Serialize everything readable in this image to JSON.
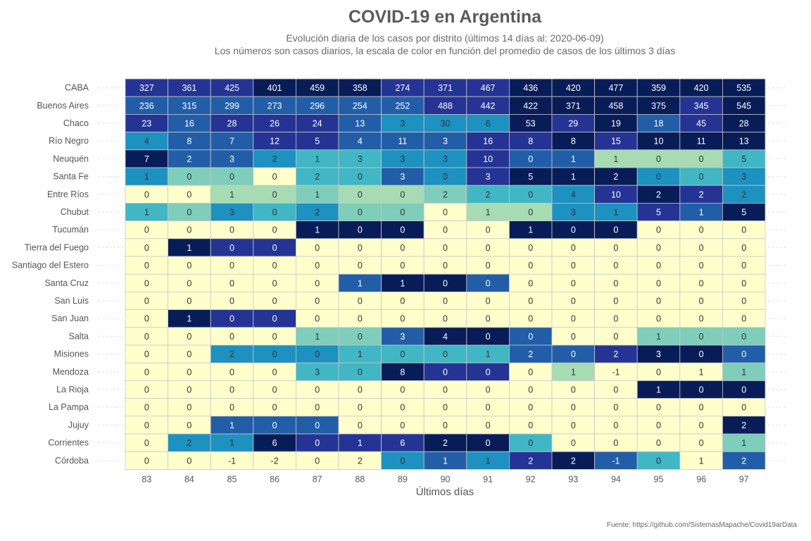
{
  "chart_data": {
    "type": "heatmap",
    "title": "COVID-19 en Argentina",
    "subtitle_line1": "Evolución diaria de los casos por distrito (últimos 14 días al: 2020-06-09)",
    "subtitle_line2": "Los números son casos diarios, la escala de color en función del promedio de casos de los últimos 3 días",
    "xlabel": "Últimos días",
    "caption": "Fuente: https://github.com/SistemasMapache/Covid19arData",
    "x": [
      "83",
      "84",
      "85",
      "86",
      "87",
      "88",
      "89",
      "90",
      "91",
      "92",
      "93",
      "94",
      "95",
      "96",
      "97"
    ],
    "rows": [
      {
        "name": "CABA",
        "values": [
          327,
          361,
          425,
          401,
          459,
          358,
          274,
          371,
          467,
          436,
          420,
          477,
          359,
          420,
          535
        ]
      },
      {
        "name": "Buenos Aires",
        "values": [
          236,
          315,
          299,
          273,
          296,
          254,
          252,
          488,
          442,
          422,
          371,
          458,
          375,
          345,
          545
        ]
      },
      {
        "name": "Chaco",
        "values": [
          23,
          16,
          28,
          26,
          24,
          13,
          3,
          30,
          6,
          53,
          29,
          19,
          18,
          45,
          28
        ]
      },
      {
        "name": "Río Negro",
        "values": [
          4,
          8,
          7,
          12,
          5,
          4,
          11,
          3,
          16,
          8,
          8,
          15,
          10,
          11,
          13
        ]
      },
      {
        "name": "Neuquén",
        "values": [
          7,
          2,
          3,
          2,
          1,
          3,
          3,
          3,
          10,
          0,
          1,
          1,
          0,
          0,
          5
        ]
      },
      {
        "name": "Santa Fe",
        "values": [
          1,
          0,
          0,
          0,
          2,
          0,
          3,
          0,
          3,
          5,
          1,
          2,
          0,
          0,
          3
        ]
      },
      {
        "name": "Entre Ríos",
        "values": [
          0,
          0,
          1,
          0,
          1,
          0,
          0,
          2,
          2,
          0,
          4,
          10,
          2,
          2,
          2
        ]
      },
      {
        "name": "Chubut",
        "values": [
          1,
          0,
          3,
          0,
          2,
          0,
          0,
          0,
          1,
          0,
          3,
          1,
          5,
          1,
          5
        ]
      },
      {
        "name": "Tucumán",
        "values": [
          0,
          0,
          0,
          0,
          1,
          0,
          0,
          0,
          0,
          1,
          0,
          0,
          0,
          0,
          0
        ]
      },
      {
        "name": "Tierra del Fuego",
        "values": [
          0,
          1,
          0,
          0,
          0,
          0,
          0,
          0,
          0,
          0,
          0,
          0,
          0,
          0,
          0
        ]
      },
      {
        "name": "Santiago del Estero",
        "values": [
          0,
          0,
          0,
          0,
          0,
          0,
          0,
          0,
          0,
          0,
          0,
          0,
          0,
          0,
          0
        ]
      },
      {
        "name": "Santa Cruz",
        "values": [
          0,
          0,
          0,
          0,
          0,
          1,
          1,
          0,
          0,
          0,
          0,
          0,
          0,
          0,
          0
        ]
      },
      {
        "name": "San Luis",
        "values": [
          0,
          0,
          0,
          0,
          0,
          0,
          0,
          0,
          0,
          0,
          0,
          0,
          0,
          0,
          0
        ]
      },
      {
        "name": "San Juan",
        "values": [
          0,
          1,
          0,
          0,
          0,
          0,
          0,
          0,
          0,
          0,
          0,
          0,
          0,
          0,
          0
        ]
      },
      {
        "name": "Salta",
        "values": [
          0,
          0,
          0,
          0,
          1,
          0,
          3,
          4,
          0,
          0,
          0,
          0,
          1,
          0,
          0
        ]
      },
      {
        "name": "Misiones",
        "values": [
          0,
          0,
          2,
          0,
          0,
          1,
          0,
          0,
          1,
          2,
          0,
          2,
          3,
          0,
          0
        ]
      },
      {
        "name": "Mendoza",
        "values": [
          0,
          0,
          0,
          0,
          3,
          0,
          8,
          0,
          0,
          0,
          1,
          -1,
          0,
          1,
          1
        ]
      },
      {
        "name": "La Rioja",
        "values": [
          0,
          0,
          0,
          0,
          0,
          0,
          0,
          0,
          0,
          0,
          0,
          0,
          1,
          0,
          0
        ]
      },
      {
        "name": "La Pampa",
        "values": [
          0,
          0,
          0,
          0,
          0,
          0,
          0,
          0,
          0,
          0,
          0,
          0,
          0,
          0,
          0
        ]
      },
      {
        "name": "Jujuy",
        "values": [
          0,
          0,
          1,
          0,
          0,
          0,
          0,
          0,
          0,
          0,
          0,
          0,
          0,
          0,
          2
        ]
      },
      {
        "name": "Corrientes",
        "values": [
          0,
          2,
          1,
          6,
          0,
          1,
          6,
          2,
          0,
          0,
          0,
          0,
          0,
          0,
          1
        ]
      },
      {
        "name": "Córdoba",
        "values": [
          0,
          0,
          -1,
          -2,
          0,
          2,
          0,
          1,
          1,
          2,
          2,
          -1,
          0,
          1,
          2
        ]
      }
    ],
    "colors": {
      "palette": [
        "#ffffcc",
        "#d9f0b5",
        "#a6dbb4",
        "#7fcdbb",
        "#41b6c4",
        "#1d91c0",
        "#225ea8",
        "#253494",
        "#081d58"
      ],
      "cell_border": "#c8c8c8",
      "text_dark": "#333333",
      "text_light": "#ffffff"
    },
    "legend": "none",
    "grid": "dotted"
  }
}
